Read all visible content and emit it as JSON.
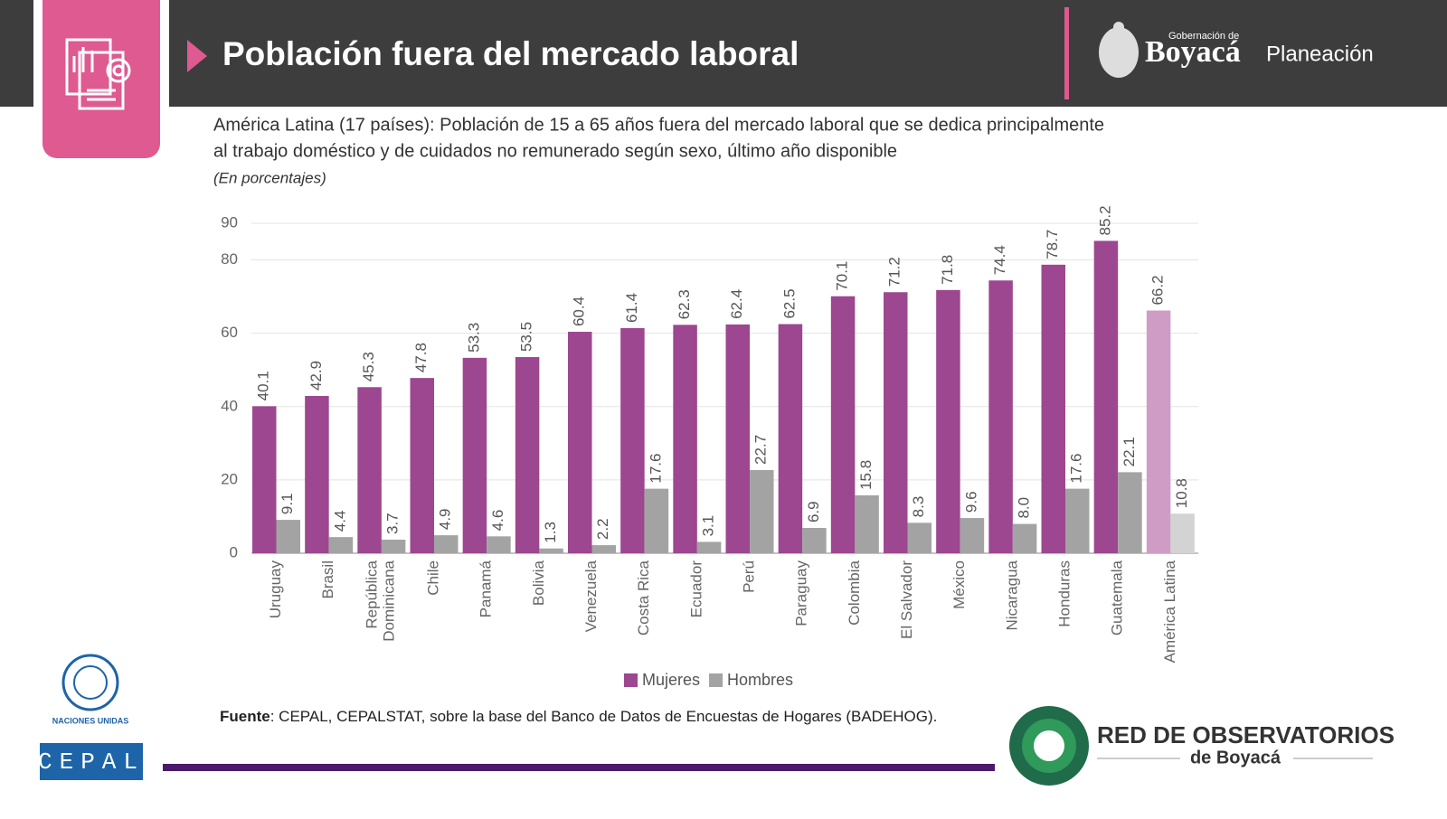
{
  "header": {
    "title": "Población fuera del mercado laboral",
    "logo_small": "Gobernación de",
    "logo_name": "Boyacá",
    "logo_unit": "Planeación"
  },
  "chart_data": {
    "type": "bar",
    "title_lines": [
      "América Latina (17 países): Población de 15 a 65 años fuera del mercado laboral que se dedica principalmente",
      "al trabajo doméstico y de cuidados no remunerado según sexo, último año disponible"
    ],
    "subtitle": "(En porcentajes)",
    "categories": [
      "Uruguay",
      "Brasil",
      "República\nDominicana",
      "Chile",
      "Panamá",
      "Bolivia",
      "Venezuela",
      "Costa Rica",
      "Ecuador",
      "Perú",
      "Paraguay",
      "Colombia",
      "El Salvador",
      "México",
      "Nicaragua",
      "Honduras",
      "Guatemala",
      "América Latina"
    ],
    "highlight_category": "América Latina",
    "series": [
      {
        "name": "Mujeres",
        "color": "#9c4790",
        "highlight_color": "#cf9cc6",
        "values": [
          40.1,
          42.9,
          45.3,
          47.8,
          53.3,
          53.5,
          60.4,
          61.4,
          62.3,
          62.4,
          62.5,
          70.1,
          71.2,
          71.8,
          74.4,
          78.7,
          85.2,
          66.2
        ]
      },
      {
        "name": "Hombres",
        "color": "#a3a3a3",
        "highlight_color": "#d3d3d3",
        "values": [
          9.1,
          4.4,
          3.7,
          4.9,
          4.6,
          1.3,
          2.2,
          17.6,
          3.1,
          22.7,
          6.9,
          15.8,
          8.3,
          9.6,
          8,
          17.6,
          22.1,
          10.8
        ],
        "value_labels": [
          "9.1",
          "4.4",
          "3.7",
          "4.9",
          "4.6",
          "1.3",
          "2.2",
          "17.6",
          "3.1",
          "22.7",
          "6.9",
          "15.8",
          "8.3",
          "9.6",
          "8.0",
          "17.6",
          "22.1",
          "10.8"
        ]
      }
    ],
    "ylim": [
      0,
      90
    ],
    "yticks": [
      0,
      20,
      40,
      60,
      80,
      90
    ],
    "grid": true,
    "legend": "bottom"
  },
  "footer": {
    "source_label": "Fuente",
    "source_text": ": CEPAL, CEPALSTAT, sobre la base del Banco de Datos de Encuestas de Hogares (BADEHOG).",
    "un_label": "Naciones Unidas",
    "cepal_label": "CEPAL",
    "network_title": "RED DE OBSERVATORIOS",
    "network_sub": "de Boyacá"
  }
}
